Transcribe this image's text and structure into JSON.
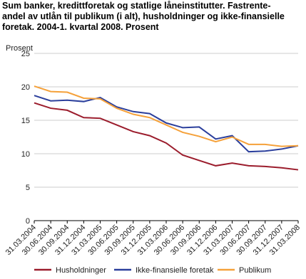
{
  "chart_data": {
    "type": "line",
    "title": [
      "Sum banker, kredittforetak og statlige låneinstitutter. Fastrente-",
      "andel av utlån til publikum (i alt), husholdninger og ikke-finansielle",
      "foretak. 2004-1. kvartal 2008. Prosent"
    ],
    "y_label": "Prosent",
    "categories": [
      "31.03.2004",
      "30.06.2004",
      "30.09.2004",
      "31.12.2004",
      "31.03.2005",
      "30.06.2005",
      "30.09.2005",
      "31.12.2005",
      "31.03.2006",
      "30.06.2006",
      "30.09.2006",
      "31.12.2006",
      "31.03.2007",
      "30.06.2007",
      "30.09.2007",
      "31.12.2007",
      "31.03.2008"
    ],
    "series": [
      {
        "name": "Husholdninger",
        "color": "#9b1c2c",
        "values": [
          17.6,
          16.8,
          16.5,
          15.4,
          15.3,
          14.3,
          13.3,
          12.7,
          11.6,
          9.8,
          9.0,
          8.2,
          8.6,
          8.2,
          8.1,
          7.9,
          7.6
        ]
      },
      {
        "name": "Ikke-finansielle foretak",
        "color": "#2b3f9c",
        "values": [
          18.7,
          17.9,
          18.0,
          17.8,
          18.4,
          17.0,
          16.3,
          16.0,
          14.6,
          13.9,
          14.0,
          12.2,
          12.7,
          10.3,
          10.4,
          10.7,
          11.2
        ]
      },
      {
        "name": "Publikum",
        "color": "#f5a13a",
        "values": [
          20.1,
          19.3,
          19.2,
          18.3,
          18.2,
          16.8,
          15.9,
          15.4,
          14.3,
          13.2,
          12.6,
          11.8,
          12.5,
          11.4,
          11.4,
          11.1,
          11.2
        ]
      }
    ],
    "ylim": [
      0,
      25
    ],
    "yticks": [
      0,
      5,
      10,
      15,
      20,
      25
    ],
    "grid": true
  }
}
